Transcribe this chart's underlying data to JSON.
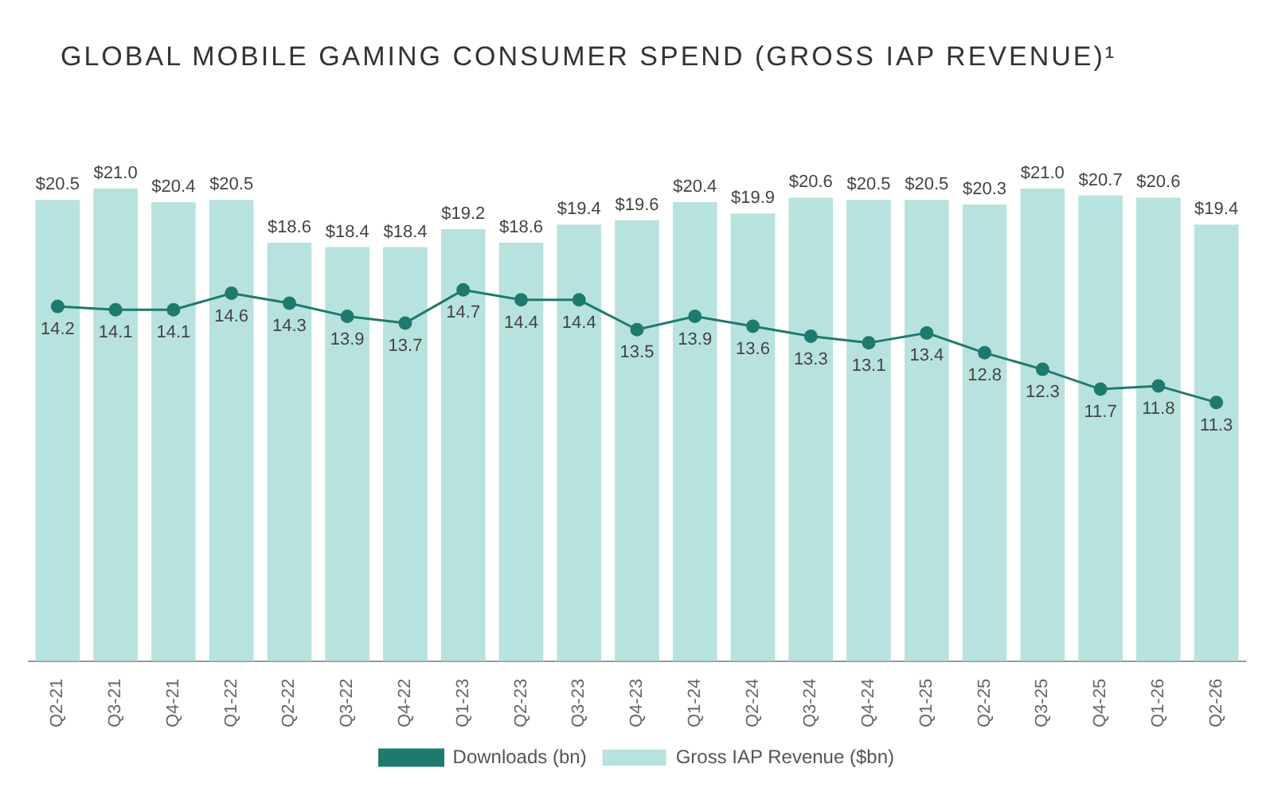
{
  "chart_data": {
    "type": "bar",
    "title": "GLOBAL MOBILE GAMING CONSUMER SPEND (GROSS IAP REVENUE)¹",
    "categories": [
      "Q2-21",
      "Q3-21",
      "Q4-21",
      "Q1-22",
      "Q2-22",
      "Q3-22",
      "Q4-22",
      "Q1-23",
      "Q2-23",
      "Q3-23",
      "Q4-23",
      "Q1-24",
      "Q2-24",
      "Q3-24",
      "Q4-24",
      "Q1-25",
      "Q2-25",
      "Q3-25",
      "Q4-25",
      "Q1-26",
      "Q2-26"
    ],
    "series": [
      {
        "name": "Gross IAP Revenue ($bn)",
        "color": "#b8e2de",
        "values": [
          20.5,
          21.0,
          20.4,
          20.5,
          18.6,
          18.4,
          18.4,
          19.2,
          18.6,
          19.4,
          19.6,
          20.4,
          19.9,
          20.6,
          20.5,
          20.5,
          20.3,
          21.0,
          20.7,
          20.6,
          19.4
        ],
        "value_labels": [
          "$20.5",
          "$21.0",
          "$20.4",
          "$20.5",
          "$18.6",
          "$18.4",
          "$18.4",
          "$19.2",
          "$18.6",
          "$19.4",
          "$19.6",
          "$20.4",
          "$19.9",
          "$20.6",
          "$20.5",
          "$20.5",
          "$20.3",
          "$21.0",
          "$20.7",
          "$20.6",
          "$19.4"
        ]
      },
      {
        "name": "Downloads (bn)",
        "type": "line",
        "axis": "y2",
        "color": "#1f7a6e",
        "values": [
          14.2,
          14.1,
          14.1,
          14.6,
          14.3,
          13.9,
          13.7,
          14.7,
          14.4,
          14.4,
          13.5,
          13.9,
          13.6,
          13.3,
          13.1,
          13.4,
          12.8,
          12.3,
          11.7,
          11.8,
          11.3
        ],
        "value_labels": [
          "14.2",
          "14.1",
          "14.1",
          "14.6",
          "14.3",
          "13.9",
          "13.7",
          "14.7",
          "14.4",
          "14.4",
          "13.5",
          "13.9",
          "13.6",
          "13.3",
          "13.1",
          "13.4",
          "12.8",
          "12.3",
          "11.7",
          "11.8",
          "11.3"
        ]
      }
    ],
    "legend": "bottom",
    "marker": "circle"
  }
}
